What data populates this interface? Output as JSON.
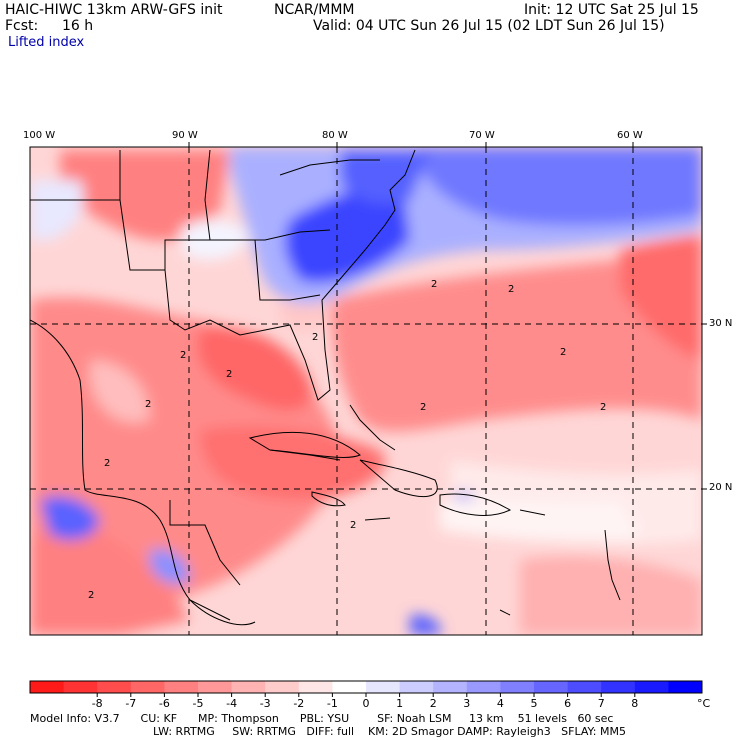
{
  "header": {
    "model": "HAIC-HIWC 13km ARW-GFS init",
    "org": "NCAR/MMM",
    "init": "Init: 12 UTC Sat 25 Jul 15",
    "fcst_label": "Fcst:",
    "fcst_value": "16 h",
    "valid": "Valid: 04 UTC Sun 26 Jul 15 (02 LDT Sun 26 Jul 15)",
    "field": "Lifted index"
  },
  "map": {
    "lon_labels": [
      "100 W",
      "90 W",
      "80 W",
      "70 W",
      "60 W"
    ],
    "lat_labels": [
      "30 N",
      "20 N"
    ],
    "contour_labels": [
      "2",
      "2",
      "2",
      "2",
      "2",
      "2",
      "2",
      "2",
      "2",
      "2",
      "2",
      "2"
    ]
  },
  "colorbar": {
    "ticks": [
      "-8",
      "-7",
      "-6",
      "-5",
      "-4",
      "-3",
      "-2",
      "-1",
      "0",
      "1",
      "2",
      "3",
      "4",
      "5",
      "6",
      "7",
      "8"
    ],
    "unit": "°C",
    "colors": [
      "#ff1a1a",
      "#ff3333",
      "#ff4d4d",
      "#ff6666",
      "#ff8080",
      "#ff9999",
      "#ffb3b3",
      "#ffcccc",
      "#ffe6e6",
      "#ffffff",
      "#e6e6ff",
      "#ccccff",
      "#b3b3ff",
      "#9999ff",
      "#8080ff",
      "#6666ff",
      "#4d4dff",
      "#3333ff",
      "#1a1aff",
      "#0000ff"
    ]
  },
  "footer": {
    "line1": "Model Info: V3.7      CU: KF      MP: Thompson      PBL: YSU        SF: Noah LSM     13 km    51 levels   60 sec",
    "line2": "LW: RRTMG     SW: RRTMG   DIFF: full    KM: 2D Smagor DAMP: Rayleigh3   SFLAY: MM5"
  }
}
